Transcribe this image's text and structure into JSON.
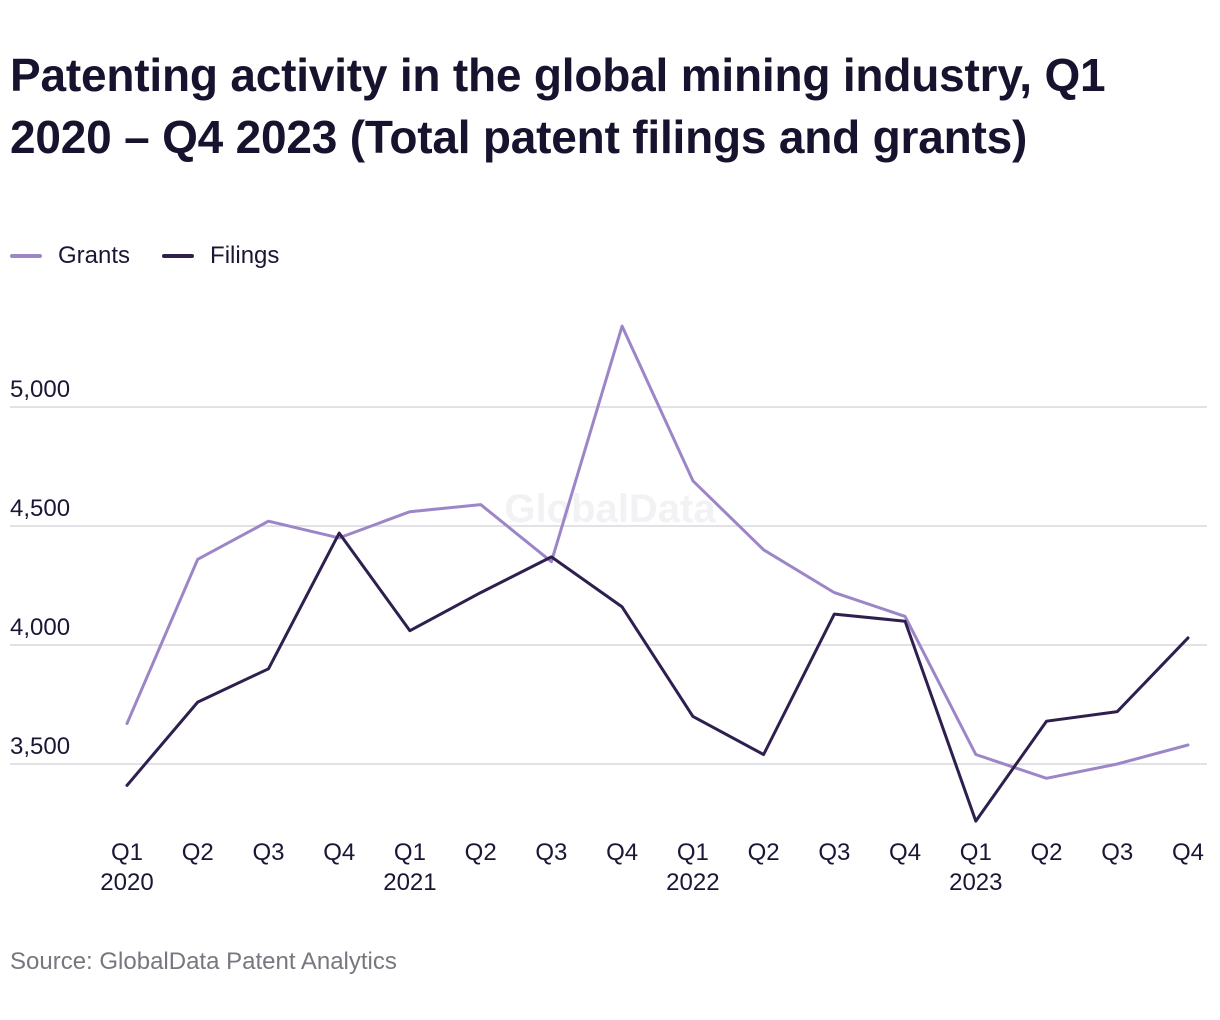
{
  "title": "Patenting activity in the global mining industry, Q1 2020 – Q4 2023 (Total patent filings and grants)",
  "watermark": "GlobalData",
  "source": "Source: GlobalData Patent Analytics",
  "chart_data": {
    "type": "line",
    "title": "Patenting activity in the global mining industry, Q1 2020 – Q4 2023 (Total patent filings and grants)",
    "xlabel": "",
    "ylabel": "",
    "categories": [
      "Q1 2020",
      "Q2 2020",
      "Q3 2020",
      "Q4 2020",
      "Q1 2021",
      "Q2 2021",
      "Q3 2021",
      "Q4 2021",
      "Q1 2022",
      "Q2 2022",
      "Q3 2022",
      "Q4 2022",
      "Q1 2023",
      "Q2 2023",
      "Q3 2023",
      "Q4 2023"
    ],
    "tick_labels": [
      {
        "quarter": "Q1",
        "year": "2020"
      },
      {
        "quarter": "Q2",
        "year": ""
      },
      {
        "quarter": "Q3",
        "year": ""
      },
      {
        "quarter": "Q4",
        "year": ""
      },
      {
        "quarter": "Q1",
        "year": "2021"
      },
      {
        "quarter": "Q2",
        "year": ""
      },
      {
        "quarter": "Q3",
        "year": ""
      },
      {
        "quarter": "Q4",
        "year": ""
      },
      {
        "quarter": "Q1",
        "year": "2022"
      },
      {
        "quarter": "Q2",
        "year": ""
      },
      {
        "quarter": "Q3",
        "year": ""
      },
      {
        "quarter": "Q4",
        "year": ""
      },
      {
        "quarter": "Q1",
        "year": "2023"
      },
      {
        "quarter": "Q2",
        "year": ""
      },
      {
        "quarter": "Q3",
        "year": ""
      },
      {
        "quarter": "Q4",
        "year": ""
      }
    ],
    "series": [
      {
        "name": "Grants",
        "color": "#9d86c8",
        "values": [
          3670,
          4360,
          4520,
          4450,
          4560,
          4590,
          4350,
          5340,
          4690,
          4400,
          4220,
          4120,
          3540,
          3440,
          3500,
          3580
        ]
      },
      {
        "name": "Filings",
        "color": "#2e1f4f",
        "values": [
          3410,
          3760,
          3900,
          4470,
          4060,
          4220,
          4370,
          4160,
          3700,
          3540,
          4130,
          4100,
          3260,
          3680,
          3720,
          4030
        ]
      }
    ],
    "yticks": [
      3500,
      4000,
      4500,
      5000
    ],
    "ytick_labels": [
      "3,500",
      "4,000",
      "4,500",
      "5,000"
    ],
    "ylim": [
      3250,
      5350
    ],
    "grid": true,
    "legend_position": "top-left"
  }
}
